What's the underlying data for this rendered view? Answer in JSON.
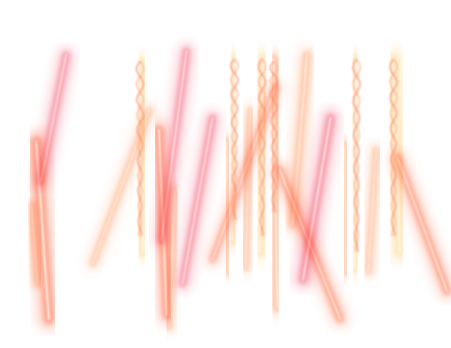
{
  "image": {
    "subject": "glowing-light-streaks",
    "background_color": "#ffffff",
    "palette": {
      "pink": "#f77a90",
      "coral": "#ff8a6a",
      "peach": "#ffb38a",
      "cream": "#ffe0a8"
    }
  }
}
